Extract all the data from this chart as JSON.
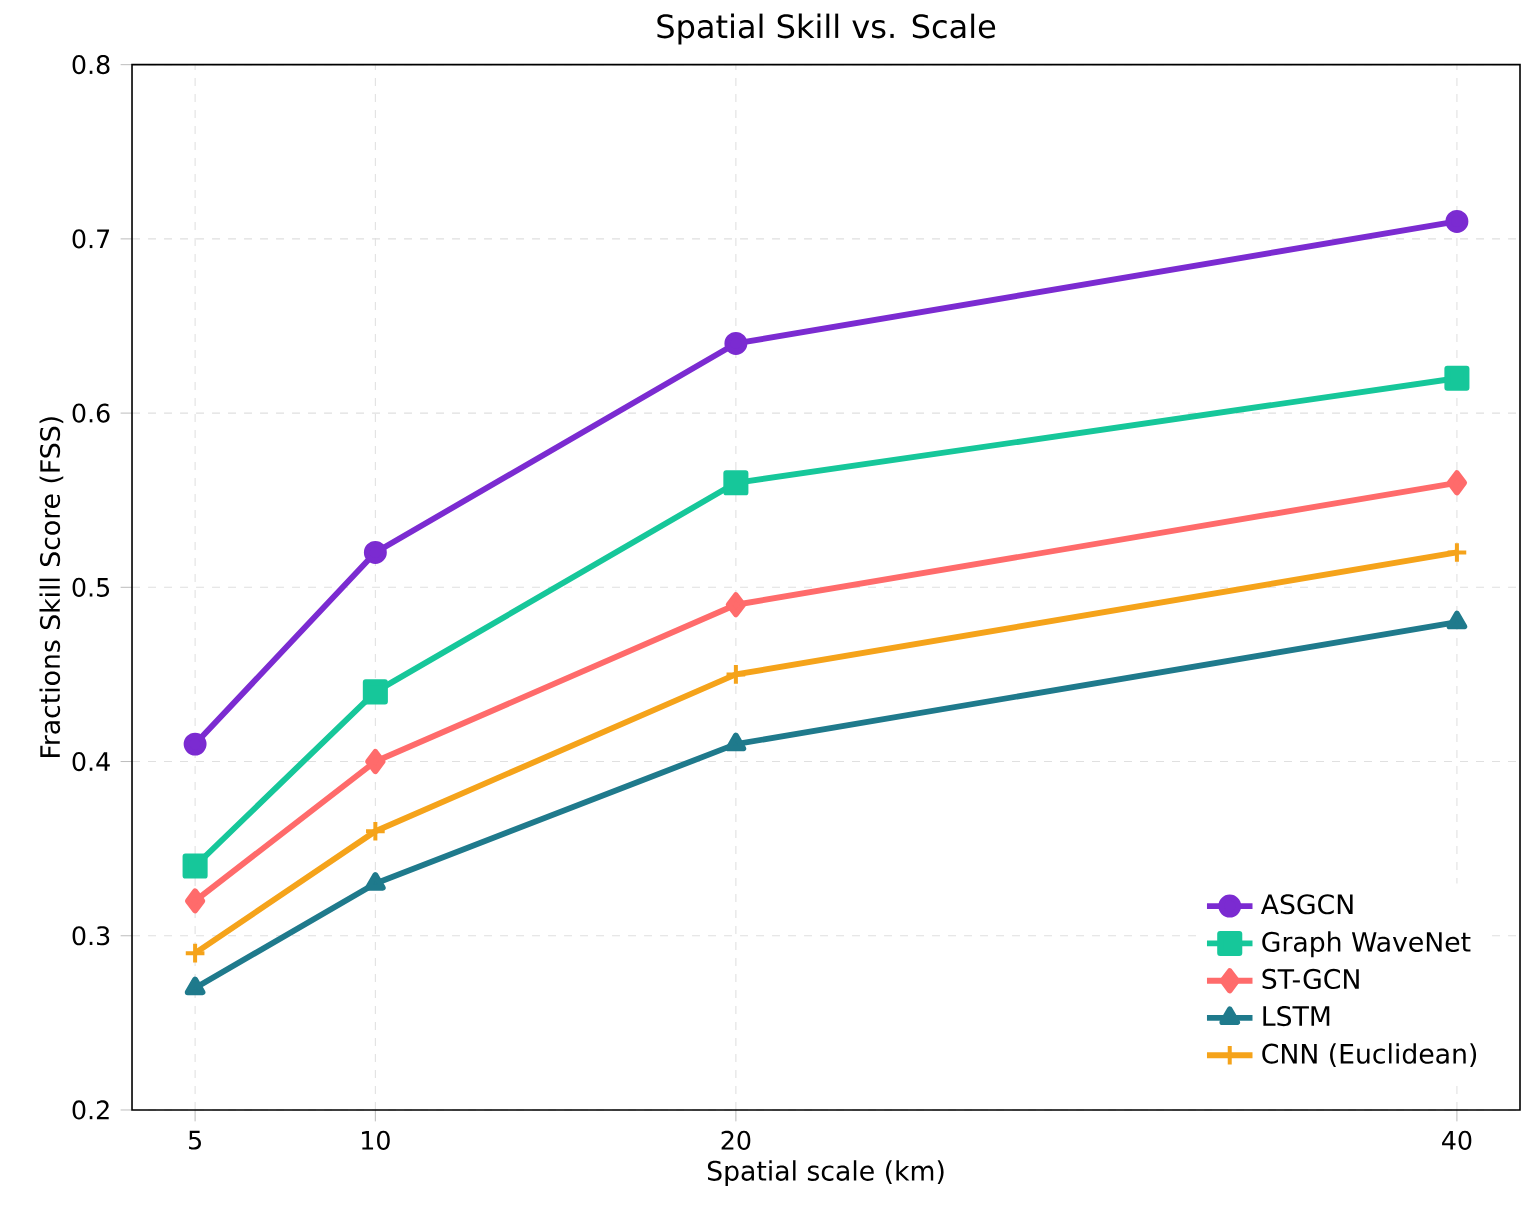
{
  "chart_data": {
    "type": "line",
    "title": "Spatial Skill vs. Scale",
    "xlabel": "Spatial scale (km)",
    "ylabel": "Fractions Skill Score (FSS)",
    "x": [
      5,
      10,
      20,
      40
    ],
    "xlim": [
      3.25,
      41.75
    ],
    "ylim": [
      0.2,
      0.8
    ],
    "xticks": [
      5,
      10,
      20,
      40
    ],
    "yticks": [
      0.2,
      0.3,
      0.4,
      0.5,
      0.6,
      0.7,
      0.8
    ],
    "grid": true,
    "legend": "bottom right",
    "line_style": "solid",
    "series": [
      {
        "name": "ASGCN",
        "color": "#7b2bd1",
        "marker": "circle",
        "values": [
          0.41,
          0.52,
          0.64,
          0.71
        ]
      },
      {
        "name": "Graph WaveNet",
        "color": "#16c79a",
        "marker": "square",
        "values": [
          0.34,
          0.44,
          0.56,
          0.62
        ]
      },
      {
        "name": "ST-GCN",
        "color": "#ff6b6b",
        "marker": "diamond",
        "values": [
          0.32,
          0.4,
          0.49,
          0.56
        ]
      },
      {
        "name": "LSTM",
        "color": "#1f7a8c",
        "marker": "triangle",
        "values": [
          0.27,
          0.33,
          0.41,
          0.48
        ]
      },
      {
        "name": "CNN (Euclidean)",
        "color": "#f5a31a",
        "marker": "cross",
        "values": [
          0.29,
          0.36,
          0.45,
          0.52
        ]
      }
    ]
  }
}
